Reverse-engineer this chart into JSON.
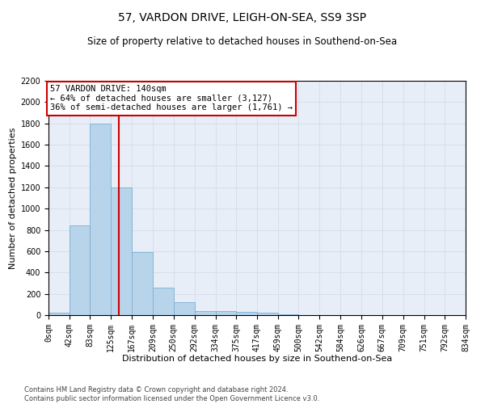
{
  "title": "57, VARDON DRIVE, LEIGH-ON-SEA, SS9 3SP",
  "subtitle": "Size of property relative to detached houses in Southend-on-Sea",
  "xlabel": "Distribution of detached houses by size in Southend-on-Sea",
  "ylabel": "Number of detached properties",
  "footer_line1": "Contains HM Land Registry data © Crown copyright and database right 2024.",
  "footer_line2": "Contains public sector information licensed under the Open Government Licence v3.0.",
  "bin_edges": [
    0,
    42,
    83,
    125,
    167,
    209,
    250,
    292,
    334,
    375,
    417,
    459,
    500,
    542,
    584,
    626,
    667,
    709,
    751,
    792,
    834
  ],
  "bin_labels": [
    "0sqm",
    "42sqm",
    "83sqm",
    "125sqm",
    "167sqm",
    "209sqm",
    "250sqm",
    "292sqm",
    "334sqm",
    "375sqm",
    "417sqm",
    "459sqm",
    "500sqm",
    "542sqm",
    "584sqm",
    "626sqm",
    "667sqm",
    "709sqm",
    "751sqm",
    "792sqm",
    "834sqm"
  ],
  "bar_heights": [
    20,
    840,
    1800,
    1200,
    590,
    255,
    120,
    40,
    40,
    30,
    20,
    5,
    0,
    0,
    0,
    0,
    0,
    0,
    0,
    0
  ],
  "bar_color": "#b8d4ea",
  "bar_edge_color": "#7aafd4",
  "grid_color": "#d0d8e8",
  "bg_color": "#e8eef8",
  "property_size": 140,
  "property_line_color": "#cc0000",
  "annotation_text": "57 VARDON DRIVE: 140sqm\n← 64% of detached houses are smaller (3,127)\n36% of semi-detached houses are larger (1,761) →",
  "annotation_box_facecolor": "#ffffff",
  "annotation_box_edgecolor": "#cc0000",
  "ylim": [
    0,
    2200
  ],
  "yticks": [
    0,
    200,
    400,
    600,
    800,
    1000,
    1200,
    1400,
    1600,
    1800,
    2000,
    2200
  ],
  "title_fontsize": 10,
  "subtitle_fontsize": 8.5,
  "xlabel_fontsize": 8,
  "ylabel_fontsize": 8,
  "tick_fontsize": 7,
  "annotation_fontsize": 7.5,
  "footer_fontsize": 6
}
